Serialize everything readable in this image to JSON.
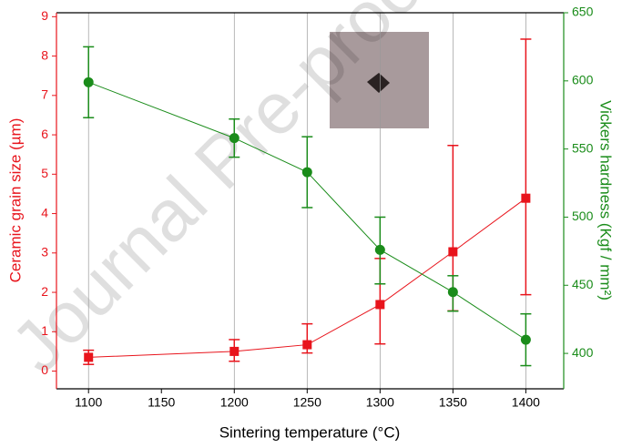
{
  "chart_data": {
    "type": "line",
    "watermark": "Journal Pre-proof",
    "x_label": "Sintering temperature (°C)",
    "y_label": "Ceramic grain size (µm)",
    "y2_label": "Vickers hardness (Kgf / mm²)",
    "x": [
      1100,
      1200,
      1250,
      1300,
      1350,
      1400
    ],
    "xlim": [
      1078,
      1426
    ],
    "xticks": [
      1100,
      1150,
      1200,
      1250,
      1300,
      1350,
      1400
    ],
    "ylim": [
      -0.45,
      9.1
    ],
    "yticks": [
      0,
      1,
      2,
      3,
      4,
      5,
      6,
      7,
      8,
      9
    ],
    "y2lim": [
      374,
      650
    ],
    "y2ticks": [
      400,
      450,
      500,
      550,
      600,
      650
    ],
    "series": [
      {
        "name": "Ceramic grain size",
        "color": "#e8141c",
        "marker": "square",
        "axis": "y",
        "values": [
          0.35,
          0.5,
          0.67,
          1.69,
          3.03,
          4.39
        ],
        "err_plus": [
          0.18,
          0.3,
          0.53,
          1.17,
          2.7,
          4.04
        ],
        "err_minus": [
          0.18,
          0.25,
          0.21,
          1.0,
          1.5,
          2.45
        ]
      },
      {
        "name": "Vickers hardness",
        "color": "#1a8c1a",
        "marker": "circle",
        "axis": "y2",
        "values": [
          599,
          558,
          533,
          476,
          445,
          410
        ],
        "err_plus": [
          26,
          14,
          26,
          24,
          12,
          19
        ],
        "err_minus": [
          26,
          14,
          26,
          25,
          14,
          19
        ]
      }
    ]
  }
}
